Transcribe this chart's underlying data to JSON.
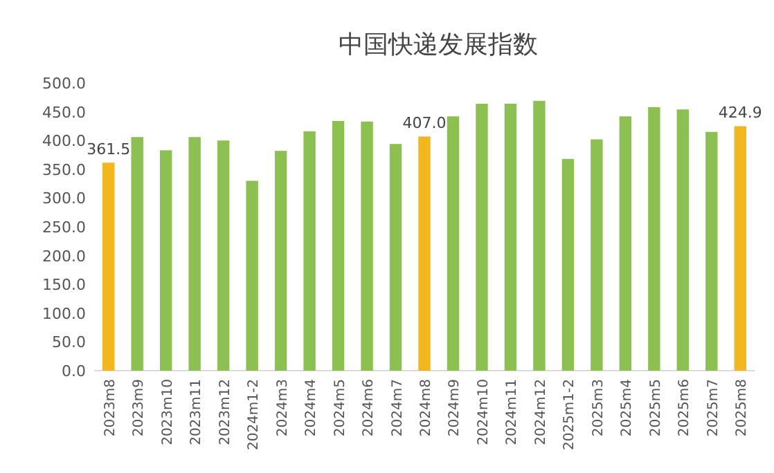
{
  "chart_data": {
    "type": "bar",
    "title": "中国快递发展指数",
    "categories": [
      "2023m8",
      "2023m9",
      "2023m10",
      "2023m11",
      "2023m12",
      "2024m1-2",
      "2024m3",
      "2024m4",
      "2024m5",
      "2024m6",
      "2024m7",
      "2024m8",
      "2024m9",
      "2024m10",
      "2024m11",
      "2024m12",
      "2025m1-2",
      "2025m3",
      "2025m4",
      "2025m5",
      "2025m6",
      "2025m7",
      "2025m8"
    ],
    "values": [
      361.5,
      406,
      383,
      406,
      400,
      330,
      382,
      416,
      434,
      433,
      394,
      407.0,
      442,
      464,
      464,
      469,
      368,
      402,
      442,
      458,
      454,
      415,
      424.9
    ],
    "colors": [
      "#f2b71f",
      "#8cc152",
      "#8cc152",
      "#8cc152",
      "#8cc152",
      "#8cc152",
      "#8cc152",
      "#8cc152",
      "#8cc152",
      "#8cc152",
      "#8cc152",
      "#f2b71f",
      "#8cc152",
      "#8cc152",
      "#8cc152",
      "#8cc152",
      "#8cc152",
      "#8cc152",
      "#8cc152",
      "#8cc152",
      "#8cc152",
      "#8cc152",
      "#f2b71f"
    ],
    "value_labels": [
      "361.5",
      null,
      null,
      null,
      null,
      null,
      null,
      null,
      null,
      null,
      null,
      "407.0",
      null,
      null,
      null,
      null,
      null,
      null,
      null,
      null,
      null,
      null,
      "424.9"
    ],
    "ylim": [
      0,
      500
    ],
    "yticks": [
      {
        "value": 0,
        "label": "0.0"
      },
      {
        "value": 50,
        "label": "50.0"
      },
      {
        "value": 100,
        "label": "100.0"
      },
      {
        "value": 150,
        "label": "150.0"
      },
      {
        "value": 200,
        "label": "200.0"
      },
      {
        "value": 250,
        "label": "250.0"
      },
      {
        "value": 300,
        "label": "300.0"
      },
      {
        "value": 350,
        "label": "350.0"
      },
      {
        "value": 400,
        "label": "400.0"
      },
      {
        "value": 450,
        "label": "450.0"
      },
      {
        "value": 500,
        "label": "500.0"
      }
    ],
    "grid": false
  }
}
